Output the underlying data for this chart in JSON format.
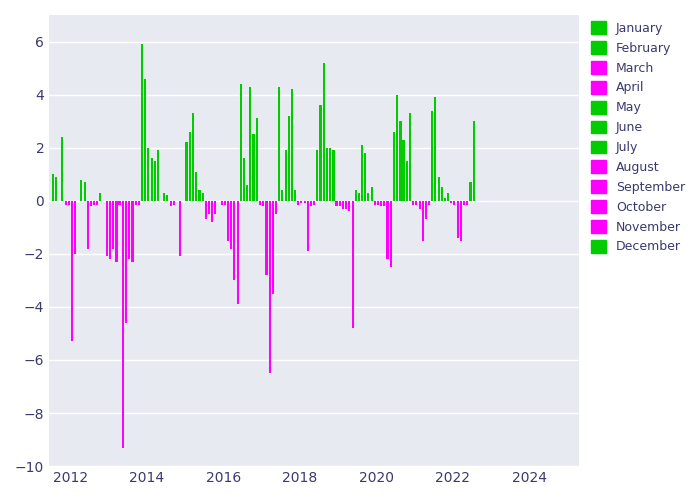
{
  "axes_background_color": "#e8eaf2",
  "figure_background_color": "#ffffff",
  "ylim": [
    -10,
    7
  ],
  "xlim": [
    2011.45,
    2025.3
  ],
  "green_color": "#00cc00",
  "magenta_color": "#ff00ff",
  "green_month_nums": [
    1,
    2,
    5,
    6,
    7,
    12
  ],
  "legend_months": [
    "January",
    "February",
    "March",
    "April",
    "May",
    "June",
    "July",
    "August",
    "September",
    "October",
    "November",
    "December"
  ],
  "legend_colors": [
    "#00cc00",
    "#00cc00",
    "#ff00ff",
    "#ff00ff",
    "#00cc00",
    "#00cc00",
    "#00cc00",
    "#ff00ff",
    "#ff00ff",
    "#ff00ff",
    "#ff00ff",
    "#00cc00"
  ],
  "yticks": [
    -10,
    -8,
    -6,
    -4,
    -2,
    0,
    2,
    4,
    6
  ],
  "xticks": [
    2012,
    2014,
    2016,
    2018,
    2020,
    2022,
    2024
  ],
  "bar_width": 0.055,
  "data": [
    {
      "x": 2011.54,
      "month": 1,
      "value": 1.0
    },
    {
      "x": 2011.62,
      "month": 2,
      "value": 0.9
    },
    {
      "x": 2011.79,
      "month": 5,
      "value": 2.4
    },
    {
      "x": 2011.88,
      "month": 8,
      "value": -0.15
    },
    {
      "x": 2011.96,
      "month": 9,
      "value": -0.15
    },
    {
      "x": 2012.04,
      "month": 3,
      "value": -5.3
    },
    {
      "x": 2012.13,
      "month": 4,
      "value": -2.0
    },
    {
      "x": 2012.29,
      "month": 6,
      "value": 0.8
    },
    {
      "x": 2012.38,
      "month": 7,
      "value": 0.7
    },
    {
      "x": 2012.46,
      "month": 8,
      "value": -1.8
    },
    {
      "x": 2012.54,
      "month": 9,
      "value": -0.2
    },
    {
      "x": 2012.63,
      "month": 10,
      "value": -0.15
    },
    {
      "x": 2012.71,
      "month": 11,
      "value": -0.15
    },
    {
      "x": 2012.79,
      "month": 12,
      "value": 0.3
    },
    {
      "x": 2012.96,
      "month": 3,
      "value": -2.1
    },
    {
      "x": 2013.04,
      "month": 4,
      "value": -2.2
    },
    {
      "x": 2013.13,
      "month": 8,
      "value": -1.8
    },
    {
      "x": 2013.21,
      "month": 9,
      "value": -2.3
    },
    {
      "x": 2013.29,
      "month": 10,
      "value": -0.15
    },
    {
      "x": 2013.38,
      "month": 3,
      "value": -9.3
    },
    {
      "x": 2013.46,
      "month": 4,
      "value": -4.6
    },
    {
      "x": 2013.54,
      "month": 8,
      "value": -2.2
    },
    {
      "x": 2013.63,
      "month": 9,
      "value": -2.3
    },
    {
      "x": 2013.71,
      "month": 10,
      "value": -0.15
    },
    {
      "x": 2013.79,
      "month": 11,
      "value": -0.15
    },
    {
      "x": 2013.88,
      "month": 1,
      "value": 5.9
    },
    {
      "x": 2013.96,
      "month": 2,
      "value": 4.6
    },
    {
      "x": 2014.04,
      "month": 5,
      "value": 2.0
    },
    {
      "x": 2014.13,
      "month": 6,
      "value": 1.6
    },
    {
      "x": 2014.21,
      "month": 7,
      "value": 1.5
    },
    {
      "x": 2014.29,
      "month": 12,
      "value": 1.9
    },
    {
      "x": 2014.46,
      "month": 1,
      "value": 0.3
    },
    {
      "x": 2014.54,
      "month": 2,
      "value": 0.2
    },
    {
      "x": 2014.63,
      "month": 3,
      "value": -0.2
    },
    {
      "x": 2014.71,
      "month": 4,
      "value": -0.15
    },
    {
      "x": 2014.88,
      "month": 9,
      "value": -2.1
    },
    {
      "x": 2015.04,
      "month": 1,
      "value": 2.2
    },
    {
      "x": 2015.13,
      "month": 2,
      "value": 2.6
    },
    {
      "x": 2015.21,
      "month": 5,
      "value": 3.3
    },
    {
      "x": 2015.29,
      "month": 6,
      "value": 1.1
    },
    {
      "x": 2015.38,
      "month": 7,
      "value": 0.4
    },
    {
      "x": 2015.46,
      "month": 12,
      "value": 0.3
    },
    {
      "x": 2015.54,
      "month": 3,
      "value": -0.7
    },
    {
      "x": 2015.63,
      "month": 4,
      "value": -0.5
    },
    {
      "x": 2015.71,
      "month": 8,
      "value": -0.8
    },
    {
      "x": 2015.79,
      "month": 9,
      "value": -0.5
    },
    {
      "x": 2015.96,
      "month": 3,
      "value": -0.15
    },
    {
      "x": 2016.04,
      "month": 4,
      "value": -0.15
    },
    {
      "x": 2016.13,
      "month": 8,
      "value": -1.5
    },
    {
      "x": 2016.21,
      "month": 9,
      "value": -1.8
    },
    {
      "x": 2016.29,
      "month": 10,
      "value": -3.0
    },
    {
      "x": 2016.38,
      "month": 11,
      "value": -3.9
    },
    {
      "x": 2016.46,
      "month": 1,
      "value": 4.4
    },
    {
      "x": 2016.54,
      "month": 2,
      "value": 1.6
    },
    {
      "x": 2016.63,
      "month": 5,
      "value": 0.6
    },
    {
      "x": 2016.71,
      "month": 6,
      "value": 4.3
    },
    {
      "x": 2016.79,
      "month": 7,
      "value": 2.5
    },
    {
      "x": 2016.88,
      "month": 12,
      "value": 3.1
    },
    {
      "x": 2016.96,
      "month": 3,
      "value": -0.15
    },
    {
      "x": 2017.04,
      "month": 4,
      "value": -0.2
    },
    {
      "x": 2017.13,
      "month": 8,
      "value": -2.8
    },
    {
      "x": 2017.21,
      "month": 9,
      "value": -6.5
    },
    {
      "x": 2017.29,
      "month": 10,
      "value": -3.5
    },
    {
      "x": 2017.38,
      "month": 11,
      "value": -0.5
    },
    {
      "x": 2017.46,
      "month": 1,
      "value": 4.3
    },
    {
      "x": 2017.54,
      "month": 2,
      "value": 0.4
    },
    {
      "x": 2017.63,
      "month": 5,
      "value": 1.9
    },
    {
      "x": 2017.71,
      "month": 6,
      "value": 3.2
    },
    {
      "x": 2017.79,
      "month": 7,
      "value": 4.2
    },
    {
      "x": 2017.88,
      "month": 12,
      "value": 0.4
    },
    {
      "x": 2017.96,
      "month": 3,
      "value": -0.15
    },
    {
      "x": 2018.04,
      "month": 4,
      "value": -0.1
    },
    {
      "x": 2018.13,
      "month": 8,
      "value": -0.1
    },
    {
      "x": 2018.21,
      "month": 9,
      "value": -1.9
    },
    {
      "x": 2018.29,
      "month": 10,
      "value": -0.2
    },
    {
      "x": 2018.38,
      "month": 11,
      "value": -0.15
    },
    {
      "x": 2018.46,
      "month": 1,
      "value": 1.9
    },
    {
      "x": 2018.54,
      "month": 2,
      "value": 3.6
    },
    {
      "x": 2018.63,
      "month": 5,
      "value": 5.2
    },
    {
      "x": 2018.71,
      "month": 6,
      "value": 2.0
    },
    {
      "x": 2018.79,
      "month": 7,
      "value": 2.0
    },
    {
      "x": 2018.88,
      "month": 12,
      "value": 1.9
    },
    {
      "x": 2018.96,
      "month": 3,
      "value": -0.2
    },
    {
      "x": 2019.04,
      "month": 4,
      "value": -0.2
    },
    {
      "x": 2019.13,
      "month": 8,
      "value": -0.3
    },
    {
      "x": 2019.21,
      "month": 9,
      "value": -0.3
    },
    {
      "x": 2019.29,
      "month": 10,
      "value": -0.4
    },
    {
      "x": 2019.38,
      "month": 11,
      "value": -4.8
    },
    {
      "x": 2019.46,
      "month": 1,
      "value": 0.4
    },
    {
      "x": 2019.54,
      "month": 2,
      "value": 0.3
    },
    {
      "x": 2019.63,
      "month": 5,
      "value": 2.1
    },
    {
      "x": 2019.71,
      "month": 6,
      "value": 1.8
    },
    {
      "x": 2019.79,
      "month": 7,
      "value": 0.3
    },
    {
      "x": 2019.88,
      "month": 12,
      "value": 0.5
    },
    {
      "x": 2019.96,
      "month": 3,
      "value": -0.15
    },
    {
      "x": 2020.04,
      "month": 4,
      "value": -0.15
    },
    {
      "x": 2020.13,
      "month": 8,
      "value": -0.2
    },
    {
      "x": 2020.21,
      "month": 9,
      "value": -0.2
    },
    {
      "x": 2020.29,
      "month": 10,
      "value": -2.2
    },
    {
      "x": 2020.38,
      "month": 11,
      "value": -2.5
    },
    {
      "x": 2020.46,
      "month": 1,
      "value": 2.6
    },
    {
      "x": 2020.54,
      "month": 2,
      "value": 4.0
    },
    {
      "x": 2020.63,
      "month": 5,
      "value": 3.0
    },
    {
      "x": 2020.71,
      "month": 6,
      "value": 2.3
    },
    {
      "x": 2020.79,
      "month": 7,
      "value": 1.5
    },
    {
      "x": 2020.88,
      "month": 12,
      "value": 3.3
    },
    {
      "x": 2020.96,
      "month": 3,
      "value": -0.15
    },
    {
      "x": 2021.04,
      "month": 4,
      "value": -0.15
    },
    {
      "x": 2021.13,
      "month": 8,
      "value": -0.3
    },
    {
      "x": 2021.21,
      "month": 9,
      "value": -1.5
    },
    {
      "x": 2021.29,
      "month": 10,
      "value": -0.7
    },
    {
      "x": 2021.38,
      "month": 11,
      "value": -0.15
    },
    {
      "x": 2021.46,
      "month": 1,
      "value": 3.4
    },
    {
      "x": 2021.54,
      "month": 2,
      "value": 3.9
    },
    {
      "x": 2021.63,
      "month": 5,
      "value": 0.9
    },
    {
      "x": 2021.71,
      "month": 6,
      "value": 0.5
    },
    {
      "x": 2021.79,
      "month": 7,
      "value": 0.1
    },
    {
      "x": 2021.88,
      "month": 12,
      "value": 0.3
    },
    {
      "x": 2021.96,
      "month": 3,
      "value": -0.1
    },
    {
      "x": 2022.04,
      "month": 4,
      "value": -0.15
    },
    {
      "x": 2022.13,
      "month": 8,
      "value": -1.4
    },
    {
      "x": 2022.21,
      "month": 9,
      "value": -1.5
    },
    {
      "x": 2022.29,
      "month": 10,
      "value": -0.15
    },
    {
      "x": 2022.38,
      "month": 11,
      "value": -0.15
    },
    {
      "x": 2022.46,
      "month": 1,
      "value": 0.7
    },
    {
      "x": 2022.54,
      "month": 2,
      "value": 3.0
    },
    {
      "x": 2022.63,
      "month": 5,
      "value": 0.0
    },
    {
      "x": 2022.71,
      "month": 6,
      "value": 0.0
    },
    {
      "x": 2022.79,
      "month": 7,
      "value": 0.0
    },
    {
      "x": 2022.88,
      "month": 12,
      "value": 0.0
    }
  ]
}
